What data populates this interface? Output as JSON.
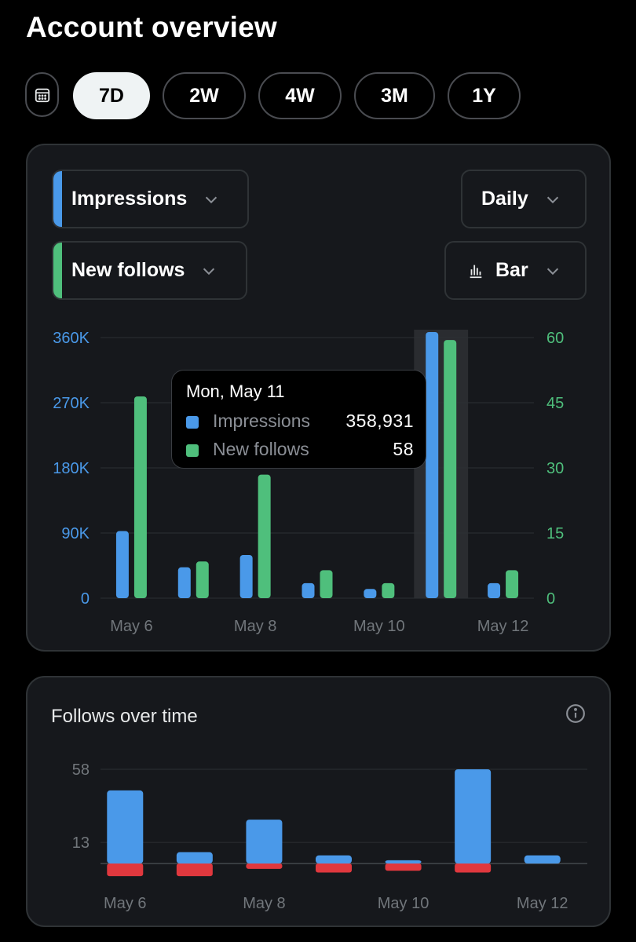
{
  "page": {
    "title": "Account overview"
  },
  "range": {
    "calendar_icon": "calendar-icon",
    "options": [
      {
        "label": "7D",
        "active": true
      },
      {
        "label": "2W",
        "active": false
      },
      {
        "label": "4W",
        "active": false
      },
      {
        "label": "3M",
        "active": false
      },
      {
        "label": "1Y",
        "active": false
      }
    ]
  },
  "controls": {
    "metric1": {
      "label": "Impressions",
      "color": "#4a99e9"
    },
    "metric2": {
      "label": "New follows",
      "color": "#4fbf7c"
    },
    "interval": "Daily",
    "chart_type": "Bar",
    "chart_type_icon": "bar-chart-icon"
  },
  "tooltip": {
    "date": "Mon, May 11",
    "rows": [
      {
        "name": "Impressions",
        "value": "358,931",
        "color": "#4a99e9"
      },
      {
        "name": "New follows",
        "value": "58",
        "color": "#4fbf7c"
      }
    ]
  },
  "follows_over_time": {
    "title": "Follows over time",
    "info_icon": "info-icon"
  },
  "colors": {
    "impressions": "#4a99e9",
    "follows": "#4fbf7c",
    "unfollows": "#e0383e",
    "axis_left": "#4a99e9",
    "axis_right": "#4fbf7c"
  },
  "chart_data": [
    {
      "type": "bar",
      "categories": [
        "May 6",
        "May 7",
        "May 8",
        "May 9",
        "May 10",
        "May 11",
        "May 12"
      ],
      "x_tick_labels": [
        "May 6",
        "May 8",
        "May 10",
        "May 12"
      ],
      "series": [
        {
          "name": "Impressions",
          "axis": "left",
          "values": [
            84000,
            34000,
            51000,
            12000,
            4000,
            358931,
            12000
          ]
        },
        {
          "name": "New follows",
          "axis": "right",
          "values": [
            45,
            7,
            27,
            5,
            2,
            58,
            5
          ]
        }
      ],
      "y_left": {
        "ticks": [
          "0",
          "90K",
          "180K",
          "270K",
          "360K"
        ],
        "range": [
          0,
          360000
        ]
      },
      "y_right": {
        "ticks": [
          "0",
          "15",
          "30",
          "45",
          "60"
        ],
        "range": [
          0,
          60
        ]
      },
      "highlight": "May 11",
      "grid": true
    },
    {
      "type": "bar",
      "title": "Follows over time",
      "categories": [
        "May 6",
        "May 7",
        "May 8",
        "May 9",
        "May 10",
        "May 11",
        "May 12"
      ],
      "x_tick_labels": [
        "May 6",
        "May 8",
        "May 10",
        "May 12"
      ],
      "series": [
        {
          "values": [
            45,
            7,
            27,
            5,
            2,
            58,
            5
          ],
          "color": "#4a99e9"
        },
        {
          "values": [
            -7,
            -7,
            -3,
            -5,
            -4,
            -5,
            0
          ],
          "color": "#e0383e"
        }
      ],
      "y_ticks": [
        "58",
        "13"
      ],
      "grid": true
    }
  ]
}
